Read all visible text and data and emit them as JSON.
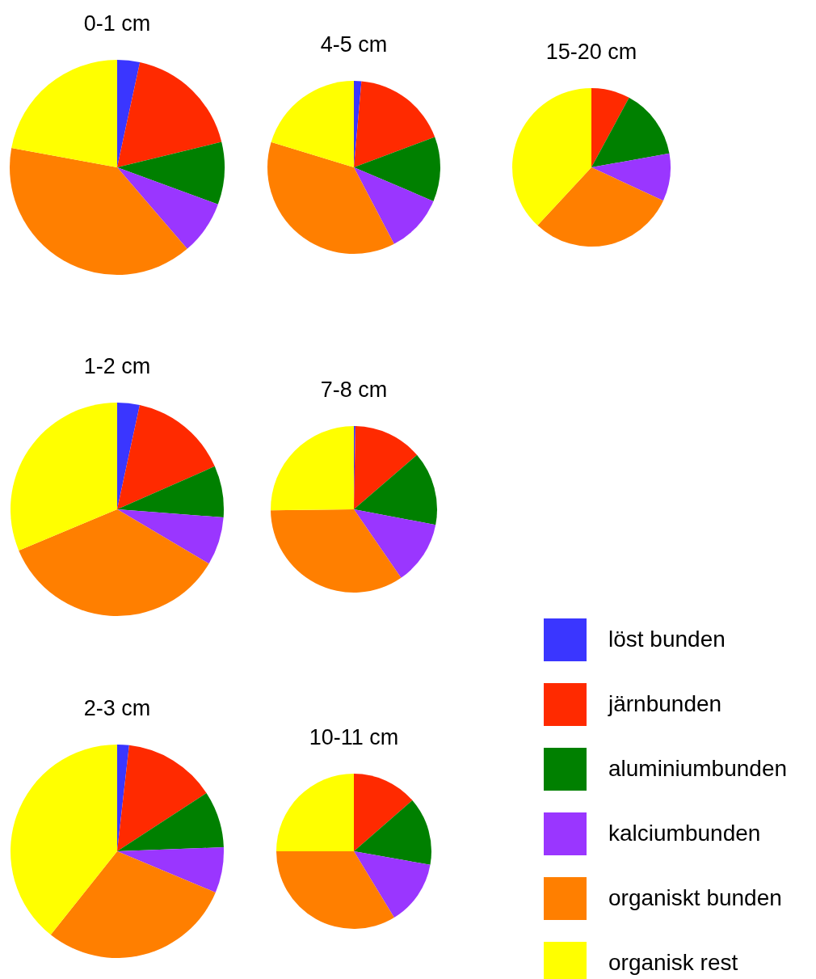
{
  "chart_data": [
    {
      "type": "pie",
      "title": "0-1 cm",
      "values": [
        3.4,
        17.8,
        9.4,
        8.1,
        39.2,
        22.1
      ],
      "colors": [
        "#3a36ff",
        "#ff2a00",
        "#008000",
        "#9a36ff",
        "#ff7f00",
        "#ffff00"
      ]
    },
    {
      "type": "pie",
      "title": "4-5 cm",
      "values": [
        1.4,
        17.9,
        12.1,
        10.9,
        37.4,
        20.3
      ],
      "colors": [
        "#3a36ff",
        "#ff2a00",
        "#008000",
        "#9a36ff",
        "#ff7f00",
        "#ffff00"
      ]
    },
    {
      "type": "pie",
      "title": "15-20 cm",
      "values": [
        0,
        7.9,
        14.3,
        9.7,
        30,
        38.1
      ],
      "colors": [
        "#3a36ff",
        "#ff2a00",
        "#008000",
        "#9a36ff",
        "#ff7f00",
        "#ffff00"
      ]
    },
    {
      "type": "pie",
      "title": "1-2 cm",
      "values": [
        3.4,
        15,
        7.8,
        7.3,
        35.2,
        31.3
      ],
      "colors": [
        "#3a36ff",
        "#ff2a00",
        "#008000",
        "#9a36ff",
        "#ff7f00",
        "#ffff00"
      ]
    },
    {
      "type": "pie",
      "title": "7-8 cm",
      "values": [
        0.3,
        13.4,
        14.3,
        12.4,
        34.4,
        25.2
      ],
      "colors": [
        "#3a36ff",
        "#ff2a00",
        "#008000",
        "#9a36ff",
        "#ff7f00",
        "#ffff00"
      ]
    },
    {
      "type": "pie",
      "title": "2-3 cm",
      "values": [
        1.8,
        14,
        8.6,
        6.9,
        29.4,
        39.3
      ],
      "colors": [
        "#3a36ff",
        "#ff2a00",
        "#008000",
        "#9a36ff",
        "#ff7f00",
        "#ffff00"
      ]
    },
    {
      "type": "pie",
      "title": "10-11 cm",
      "categories": [
        "löst bunden",
        "järnbunden",
        "aluminiumbunden",
        "kalciumbunden",
        "organiskt bunden",
        "organisk rest"
      ],
      "values": [
        0,
        13.6,
        14.2,
        13.5,
        33.7,
        25
      ],
      "colors": [
        "#3a36ff",
        "#ff2a00",
        "#008000",
        "#9a36ff",
        "#ff7f00",
        "#ffff00"
      ],
      "legend": "right"
    }
  ]
}
